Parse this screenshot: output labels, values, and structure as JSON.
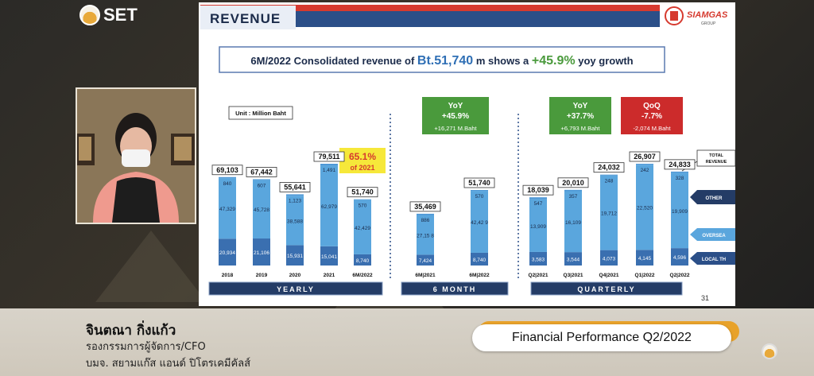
{
  "set_logo": {
    "text": "SET"
  },
  "presenter": {
    "name": "จินตณา กิ่งแก้ว",
    "position": "รองกรรมการผู้จัดการ/CFO",
    "company": "บมจ. สยามแก๊ส แอนด์ ปิโตรเคมีคัลส์"
  },
  "caption": {
    "title": "Financial Performance Q2/2022"
  },
  "slide": {
    "header": "REVENUE",
    "brand": "SIAMGAS",
    "brand_sub": "GROUP",
    "headline_pre": "6M/2022 Consolidated revenue of",
    "headline_value": "Bt.51,740",
    "headline_mid": "m shows a",
    "headline_growth": "+45.9%",
    "headline_post": "yoy growth",
    "unit": "Unit : Million Baht",
    "highlight_pct": "65.1%",
    "highlight_sub": "of 2021",
    "page_number": "31",
    "section_labels": [
      "YEARLY",
      "6 MONTH",
      "QUARTERLY"
    ],
    "yoy_6m": {
      "title": "YoY",
      "pct": "+45.9%",
      "abs": "+16,271 M.Baht"
    },
    "yoy_q": {
      "title": "YoY",
      "pct": "+37.7%",
      "abs": "+6,793 M.Baht"
    },
    "qoq_q": {
      "title": "QoQ",
      "pct": "-7.7%",
      "abs": "-2,074 M.Baht"
    },
    "legend": {
      "total": [
        "TOTAL",
        "REVENUE"
      ],
      "other": "OTHER",
      "overseas": "OVERSEA",
      "local": "LOCAL TH"
    },
    "colors": {
      "local": "#3a6fb0",
      "overseas": "#5aa6dd",
      "other": "#4f98d6",
      "header_blue": "#2b4f88",
      "header_red": "#d63a2f",
      "yoy_green": "#4a9a3c",
      "qoq_red": "#cc2b2b",
      "highlight_yellow": "#f6e83a"
    }
  },
  "chart_data": [
    {
      "type": "bar",
      "stacked": true,
      "title": "YEARLY",
      "categories": [
        "2018",
        "2019",
        "2020",
        "2021",
        "6M/2022"
      ],
      "totals": [
        "69,103",
        "67,442",
        "55,641",
        "79,511",
        "51,740"
      ],
      "series": [
        {
          "name": "LOCAL TH",
          "values": [
            20934,
            21106,
            15931,
            15041,
            8740
          ],
          "labels": [
            "20,934",
            "21,106",
            "15,931",
            "15,041",
            "8,740"
          ]
        },
        {
          "name": "OVERSEA",
          "values": [
            47329,
            45728,
            38588,
            62979,
            42429
          ],
          "labels": [
            "47,329",
            "45,728",
            "38,588",
            "62,979",
            "42,429"
          ]
        },
        {
          "name": "OTHER",
          "values": [
            840,
            607,
            1123,
            1491,
            570
          ],
          "labels": [
            "840",
            "607",
            "1,123",
            "1,491",
            "570"
          ]
        }
      ]
    },
    {
      "type": "bar",
      "stacked": true,
      "title": "6 MONTH",
      "categories": [
        "6M|2021",
        "6M|2022"
      ],
      "totals": [
        "35,469",
        "51,740"
      ],
      "series": [
        {
          "name": "LOCAL TH",
          "values": [
            7424,
            8740
          ],
          "labels": [
            "7,424",
            "8,740"
          ]
        },
        {
          "name": "OVERSEA",
          "values": [
            27158,
            42429
          ],
          "labels": [
            "27,15 8",
            "42,42 9"
          ]
        },
        {
          "name": "OTHER",
          "values": [
            886,
            570
          ],
          "labels": [
            "886",
            "570"
          ]
        }
      ]
    },
    {
      "type": "bar",
      "stacked": true,
      "title": "QUARTERLY",
      "categories": [
        "Q2|2021",
        "Q3|2021",
        "Q4|2021",
        "Q1|2022",
        "Q2|2022"
      ],
      "totals": [
        "18,039",
        "20,010",
        "24,032",
        "26,907",
        "24,833"
      ],
      "series": [
        {
          "name": "LOCAL TH",
          "values": [
            3583,
            3544,
            4073,
            4145,
            4596
          ],
          "labels": [
            "3,583",
            "3,544",
            "4,073",
            "4,145",
            "4,596"
          ]
        },
        {
          "name": "OVERSEA",
          "values": [
            13909,
            16109,
            19712,
            22520,
            19909
          ],
          "labels": [
            "13,909",
            "16,109",
            "19,712",
            "22,520",
            "19,909"
          ]
        },
        {
          "name": "OTHER",
          "values": [
            547,
            357,
            248,
            242,
            328
          ],
          "labels": [
            "547",
            "357",
            "248",
            "242",
            "328"
          ]
        }
      ]
    }
  ]
}
